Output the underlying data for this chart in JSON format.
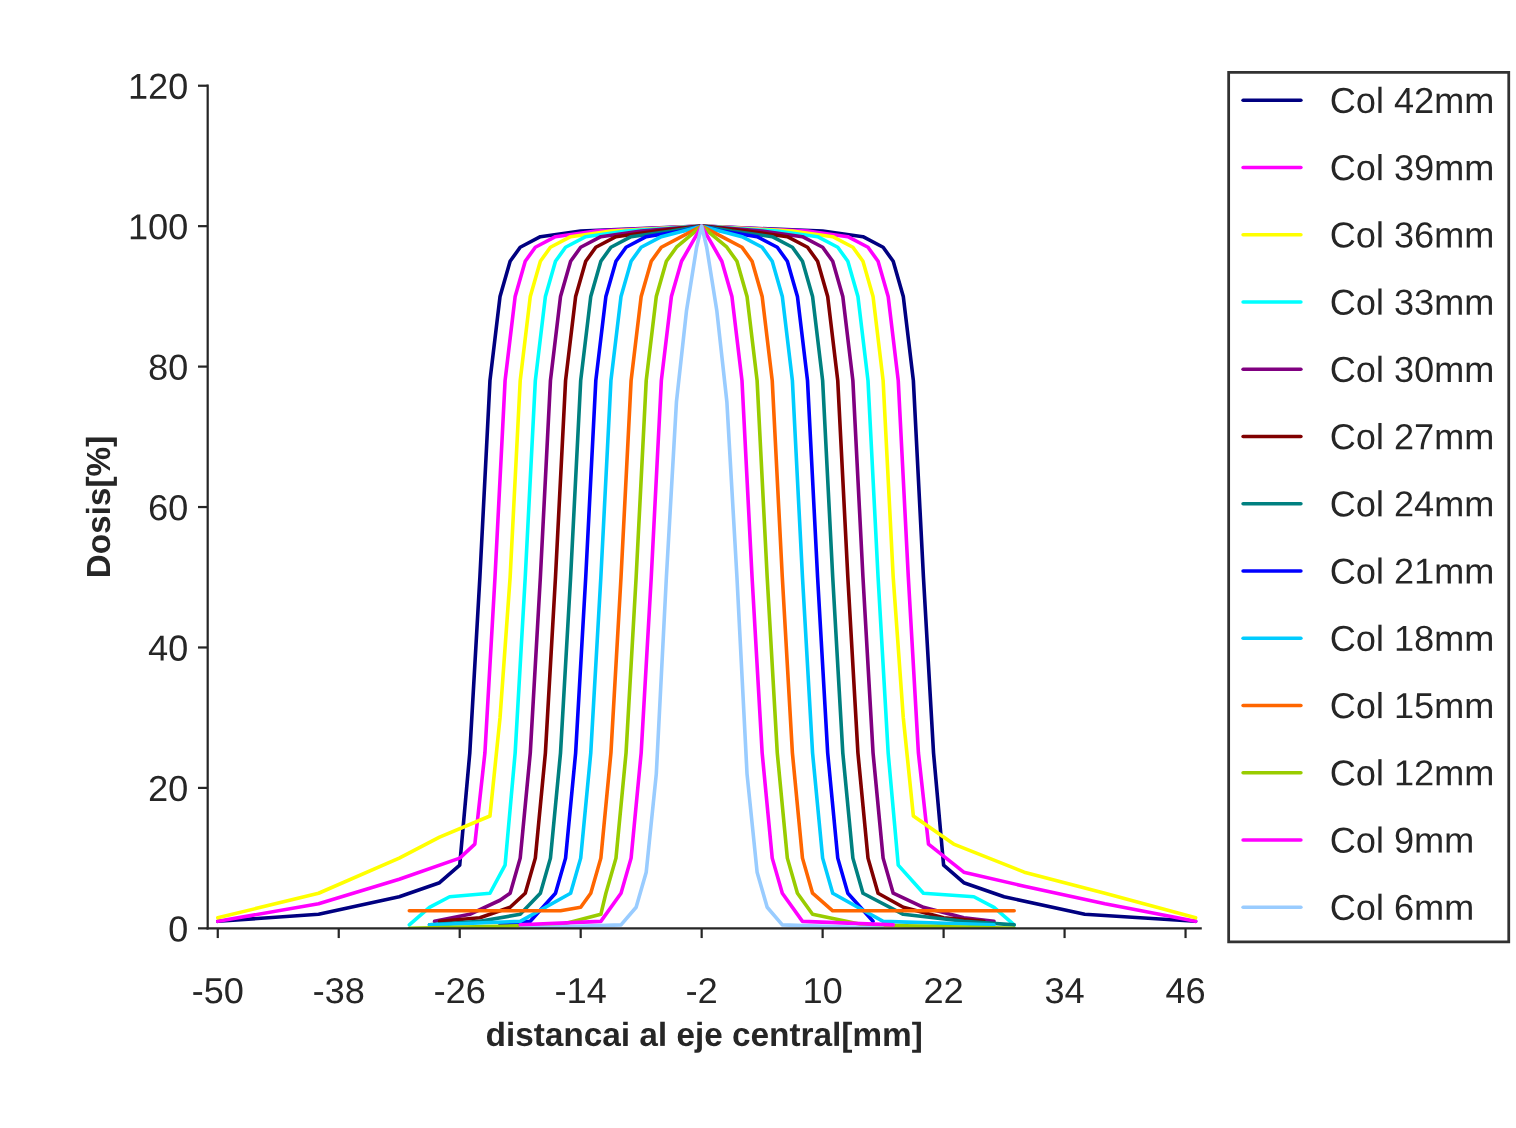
{
  "chart_data": {
    "type": "line",
    "xlabel": "distancai al eje central[mm]",
    "ylabel": "Dosis[%]",
    "xlim": [
      -51,
      47.5
    ],
    "xticks": [
      -50,
      -38,
      -26,
      -14,
      -2,
      10,
      22,
      34,
      46
    ],
    "ylim": [
      0,
      120
    ],
    "yticks": [
      0,
      20,
      40,
      60,
      80,
      100,
      120
    ],
    "grid": false,
    "legend": "right",
    "marker": "none",
    "line_style": "solid",
    "series": [
      {
        "name": "Col 42mm",
        "color": "#000080",
        "x": [
          -50,
          -40,
          -32,
          -28,
          -26,
          -25,
          -24,
          -23,
          -22,
          -21,
          -20,
          -18,
          -14,
          -2,
          10,
          14,
          16,
          17,
          18,
          19,
          20,
          21,
          22,
          24,
          28,
          36,
          47
        ],
        "values": [
          1,
          2,
          4.5,
          6.5,
          9,
          25,
          50,
          78,
          90,
          95,
          97,
          98.5,
          99.3,
          100,
          99.3,
          98.5,
          97,
          95,
          90,
          78,
          50,
          25,
          9,
          6.5,
          4.5,
          2,
          1
        ]
      },
      {
        "name": "Col 39mm",
        "color": "#ff00ff",
        "x": [
          -50,
          -40,
          -32,
          -26,
          -24.5,
          -23.5,
          -22.5,
          -21.5,
          -20.5,
          -19.5,
          -18.5,
          -16.5,
          -12.5,
          -2,
          8.5,
          12.5,
          14.5,
          15.5,
          16.5,
          17.5,
          18.5,
          19.5,
          20.5,
          24,
          30,
          38,
          47
        ],
        "values": [
          1,
          3.5,
          7,
          10,
          12,
          25,
          50,
          78,
          90,
          95,
          97,
          98.5,
          99.3,
          100,
          99.3,
          98.5,
          97,
          95,
          90,
          78,
          50,
          25,
          12,
          8,
          6,
          3.5,
          1
        ]
      },
      {
        "name": "Col 36mm",
        "color": "#ffff00",
        "x": [
          -50,
          -40,
          -32,
          -28,
          -23,
          -22,
          -21,
          -20,
          -19,
          -18,
          -17,
          -15,
          -11,
          -2,
          7,
          11,
          13,
          14,
          15,
          16,
          17,
          18,
          19,
          23,
          30,
          38,
          47
        ],
        "values": [
          1.5,
          5,
          10,
          13,
          16,
          30,
          50,
          78,
          90,
          95,
          97,
          98.5,
          99.3,
          100,
          99.3,
          98.5,
          97,
          95,
          90,
          78,
          50,
          30,
          16,
          12,
          8,
          5,
          1.5
        ]
      },
      {
        "name": "Col 33mm",
        "color": "#00ffff",
        "x": [
          -31,
          -29,
          -27,
          -23,
          -21.5,
          -20.5,
          -19.5,
          -18.5,
          -17.5,
          -16.5,
          -15.5,
          -13.5,
          -9.5,
          -2,
          5.5,
          9.5,
          11.5,
          12.5,
          13.5,
          14.5,
          15.5,
          16.5,
          17.5,
          20,
          25,
          27,
          29
        ],
        "values": [
          0.5,
          3,
          4.5,
          5,
          9,
          25,
          50,
          78,
          90,
          95,
          97,
          98.5,
          99.3,
          100,
          99.3,
          98.5,
          97,
          95,
          90,
          78,
          50,
          25,
          9,
          5,
          4.5,
          3,
          0.5
        ]
      },
      {
        "name": "Col 30mm",
        "color": "#800080",
        "x": [
          -28.5,
          -25,
          -22,
          -21,
          -20,
          -19,
          -18,
          -17,
          -16,
          -15,
          -14,
          -12,
          -8,
          -2,
          4,
          8,
          10,
          11,
          12,
          13,
          14,
          15,
          16,
          17,
          20,
          24,
          27
        ],
        "values": [
          1,
          2,
          4,
          5,
          10,
          25,
          50,
          78,
          90,
          95,
          97,
          98.5,
          99.3,
          100,
          99.3,
          98.5,
          97,
          95,
          90,
          78,
          50,
          25,
          10,
          5,
          3,
          1.5,
          1
        ]
      },
      {
        "name": "Col 27mm",
        "color": "#800000",
        "x": [
          -28,
          -24,
          -21,
          -19.5,
          -18.5,
          -17.5,
          -16.5,
          -15.5,
          -14.5,
          -13.5,
          -12.5,
          -10.5,
          -6.5,
          -2,
          2.5,
          6.5,
          8.5,
          9.5,
          10.5,
          11.5,
          12.5,
          13.5,
          14.5,
          15.5,
          18,
          22,
          26
        ],
        "values": [
          1,
          1.5,
          3,
          5,
          10,
          25,
          50,
          78,
          90,
          95,
          97,
          98.5,
          99.3,
          100,
          99.3,
          98.5,
          97,
          95,
          90,
          78,
          50,
          25,
          10,
          5,
          3,
          1.5,
          1
        ]
      },
      {
        "name": "Col 24mm",
        "color": "#008080",
        "x": [
          -29,
          -24,
          -20,
          -18,
          -17,
          -16,
          -15,
          -14,
          -13,
          -12,
          -11,
          -9,
          -5,
          -2,
          1,
          5,
          7,
          8,
          9,
          10,
          11,
          12,
          13,
          14,
          18,
          24,
          29
        ],
        "values": [
          0.5,
          1,
          2,
          5,
          10,
          25,
          50,
          78,
          90,
          95,
          97,
          98.5,
          99.3,
          100,
          99.3,
          98.5,
          97,
          95,
          90,
          78,
          50,
          25,
          10,
          5,
          2,
          1,
          0.5
        ]
      },
      {
        "name": "Col 21mm",
        "color": "#0000ff",
        "x": [
          -22,
          -19,
          -16.5,
          -15.5,
          -14.5,
          -13.5,
          -12.5,
          -11.5,
          -10.5,
          -9.5,
          -7.5,
          -4,
          -2,
          0,
          3.5,
          5.5,
          6.5,
          7.5,
          8.5,
          9.5,
          10.5,
          11.5,
          12.5,
          15
        ],
        "values": [
          0.5,
          1,
          5,
          10,
          25,
          50,
          78,
          90,
          95,
          97,
          98.5,
          99.3,
          100,
          99.3,
          98.5,
          97,
          95,
          90,
          78,
          50,
          25,
          10,
          5,
          1
        ]
      },
      {
        "name": "Col 18mm",
        "color": "#00ccff",
        "x": [
          -29,
          -20,
          -15,
          -14,
          -13,
          -12,
          -11,
          -10,
          -9,
          -8,
          -6,
          -2,
          2,
          4,
          5,
          6,
          7,
          8,
          9,
          10,
          11,
          16,
          27
        ],
        "values": [
          0.5,
          1,
          5,
          10,
          25,
          50,
          78,
          90,
          95,
          97,
          98.5,
          100,
          98.5,
          97,
          95,
          90,
          78,
          50,
          25,
          10,
          5,
          1,
          0.5
        ]
      },
      {
        "name": "Col 15mm",
        "color": "#ff6600",
        "x": [
          -31,
          -16,
          -14,
          -13,
          -12,
          -11,
          -10,
          -9,
          -8,
          -7,
          -6,
          -4,
          -2,
          0,
          2,
          3,
          4,
          5,
          6,
          7,
          8,
          9,
          11,
          29
        ],
        "values": [
          2.5,
          2.5,
          3,
          5,
          10,
          25,
          50,
          78,
          90,
          95,
          97,
          98.5,
          100,
          98.5,
          97,
          95,
          90,
          78,
          50,
          25,
          10,
          5,
          2.5,
          2.5
        ]
      },
      {
        "name": "Col 12mm",
        "color": "#99cc00",
        "x": [
          -31,
          -16,
          -12,
          -11.5,
          -10.5,
          -9.5,
          -8.5,
          -7.5,
          -6.5,
          -5.5,
          -4.5,
          -2,
          0.5,
          1.5,
          2.5,
          3.5,
          4.5,
          5.5,
          6.5,
          7.5,
          9,
          14,
          29
        ],
        "values": [
          0,
          0.5,
          2,
          5,
          10,
          25,
          50,
          78,
          90,
          95,
          97,
          100,
          97,
          95,
          90,
          78,
          50,
          25,
          10,
          5,
          2,
          0.5,
          0
        ]
      },
      {
        "name": "Col 9mm",
        "color": "#ff00ff",
        "x": [
          -20,
          -12,
          -10,
          -9,
          -8,
          -7,
          -6,
          -5,
          -4,
          -3,
          -2,
          -1,
          0,
          1,
          2,
          3,
          4,
          5,
          6,
          8,
          17
        ],
        "values": [
          0.5,
          1,
          5,
          10,
          25,
          50,
          78,
          90,
          95,
          97.5,
          100,
          97.5,
          95,
          90,
          78,
          50,
          25,
          10,
          5,
          1,
          0.5
        ]
      },
      {
        "name": "Col 6mm",
        "color": "#99ccff",
        "x": [
          -20,
          -10,
          -8.5,
          -7.5,
          -6.5,
          -5.5,
          -4.5,
          -3.5,
          -2.5,
          -2,
          -1.5,
          -0.5,
          0.5,
          1.5,
          2.5,
          3.5,
          4.5,
          6,
          16
        ],
        "values": [
          0,
          0.5,
          3,
          8,
          22,
          50,
          75,
          88,
          97,
          100,
          97,
          88,
          75,
          50,
          22,
          8,
          3,
          0.5,
          0
        ]
      }
    ]
  }
}
